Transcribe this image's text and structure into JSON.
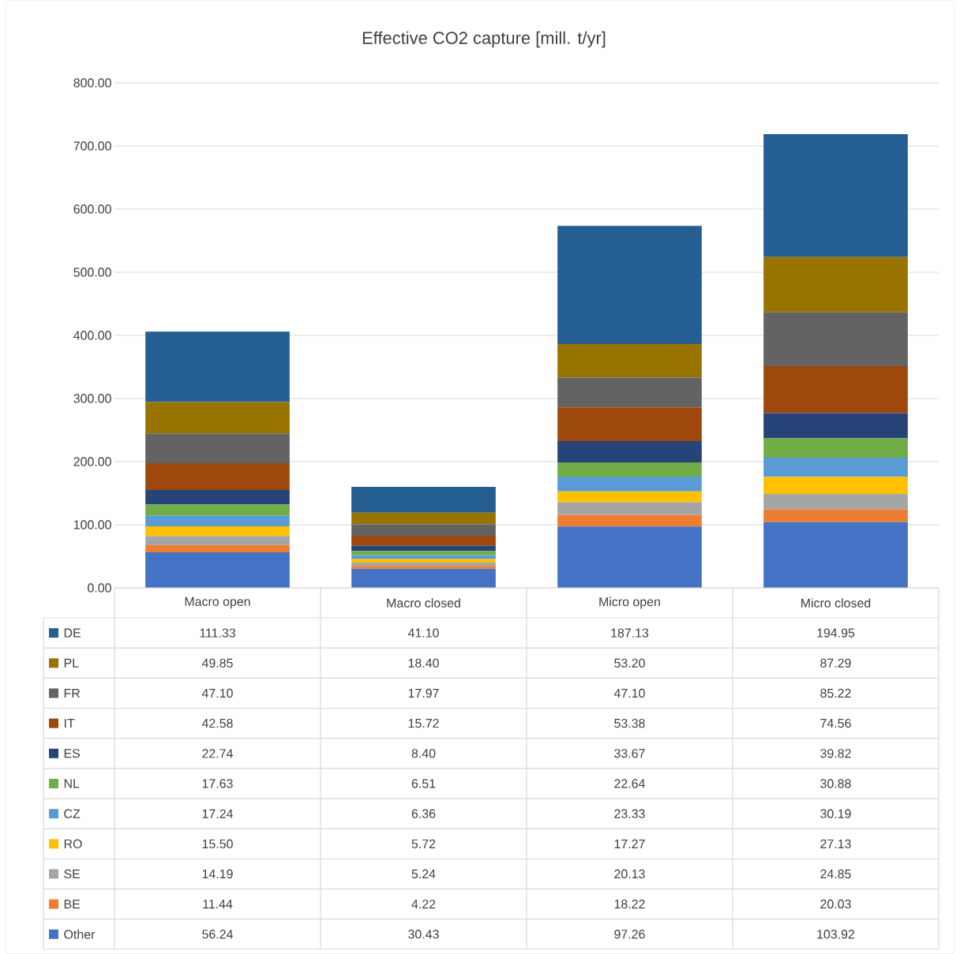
{
  "chart_data": {
    "type": "bar",
    "title": "Effective CO2 capture [mill. t/yr]",
    "stacked": true,
    "grid": "y",
    "legend": "bottom",
    "categories": [
      "Macro open",
      "Macro closed",
      "Micro open",
      "Micro closed"
    ],
    "ylim": [
      0,
      800
    ],
    "yticks": [
      {
        "value": 0,
        "label": "0.00"
      },
      {
        "value": 100,
        "label": "100.00"
      },
      {
        "value": 200,
        "label": "200.00"
      },
      {
        "value": 300,
        "label": "300.00"
      },
      {
        "value": 400,
        "label": "400.00"
      },
      {
        "value": 500,
        "label": "500.00"
      },
      {
        "value": 600,
        "label": "600.00"
      },
      {
        "value": 700,
        "label": "700.00"
      },
      {
        "value": 800,
        "label": "800.00"
      }
    ],
    "series": [
      {
        "name": "Other",
        "color": "#4472c4",
        "values": [
          56.24,
          30.43,
          97.26,
          103.92
        ],
        "value_labels": [
          "56.24",
          "30.43",
          "97.26",
          "103.92"
        ]
      },
      {
        "name": "BE",
        "color": "#ed7d31",
        "values": [
          11.44,
          4.22,
          18.22,
          20.03
        ],
        "value_labels": [
          "11.44",
          "4.22",
          "18.22",
          "20.03"
        ]
      },
      {
        "name": "SE",
        "color": "#a5a5a5",
        "values": [
          14.19,
          5.24,
          20.13,
          24.85
        ],
        "value_labels": [
          "14.19",
          "5.24",
          "20.13",
          "24.85"
        ]
      },
      {
        "name": "RO",
        "color": "#ffc000",
        "values": [
          15.5,
          5.72,
          17.27,
          27.13
        ],
        "value_labels": [
          "15.50",
          "5.72",
          "17.27",
          "27.13"
        ]
      },
      {
        "name": "CZ",
        "color": "#5b9bd5",
        "values": [
          17.24,
          6.36,
          23.33,
          30.19
        ],
        "value_labels": [
          "17.24",
          "6.36",
          "23.33",
          "30.19"
        ]
      },
      {
        "name": "NL",
        "color": "#70ad47",
        "values": [
          17.63,
          6.51,
          22.64,
          30.88
        ],
        "value_labels": [
          "17.63",
          "6.51",
          "22.64",
          "30.88"
        ]
      },
      {
        "name": "ES",
        "color": "#264478",
        "values": [
          22.74,
          8.4,
          33.67,
          39.82
        ],
        "value_labels": [
          "22.74",
          "8.40",
          "33.67",
          "39.82"
        ]
      },
      {
        "name": "IT",
        "color": "#9e480e",
        "values": [
          42.58,
          15.72,
          53.38,
          74.56
        ],
        "value_labels": [
          "42.58",
          "15.72",
          "53.38",
          "74.56"
        ]
      },
      {
        "name": "FR",
        "color": "#636363",
        "values": [
          47.1,
          17.97,
          47.1,
          85.22
        ],
        "value_labels": [
          "47.10",
          "17.97",
          "47.10",
          "85.22"
        ]
      },
      {
        "name": "PL",
        "color": "#997300",
        "values": [
          49.85,
          18.4,
          53.2,
          87.29
        ],
        "value_labels": [
          "49.85",
          "18.40",
          "53.20",
          "87.29"
        ]
      },
      {
        "name": "DE",
        "color": "#255e91",
        "values": [
          111.33,
          41.1,
          187.13,
          194.95
        ],
        "value_labels": [
          "111.33",
          "41.10",
          "187.13",
          "194.95"
        ]
      }
    ]
  }
}
